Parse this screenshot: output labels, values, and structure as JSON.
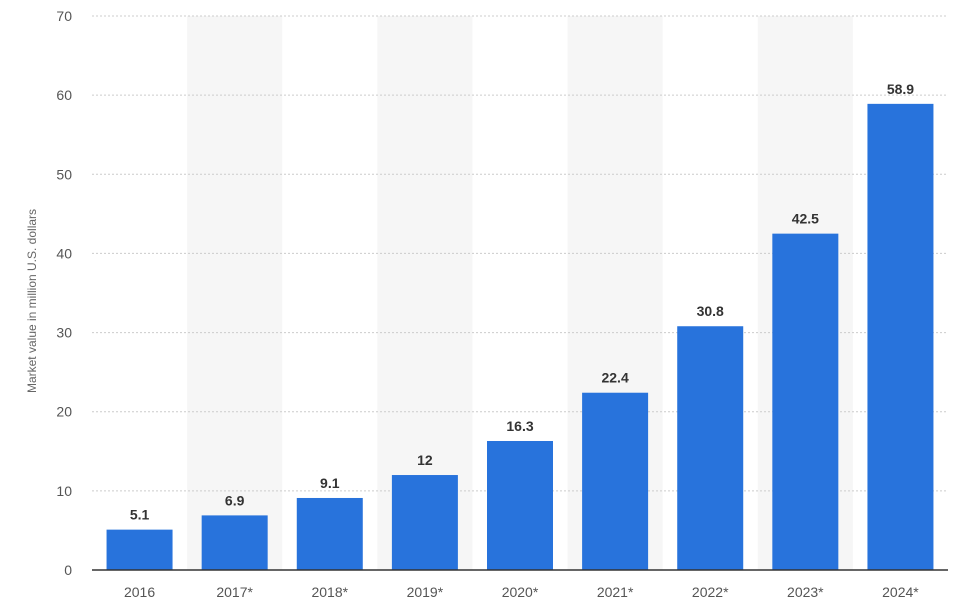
{
  "chart_data": {
    "type": "bar",
    "title": "",
    "xlabel": "",
    "ylabel": "Market value in million U.S. dollars",
    "categories": [
      "2016",
      "2017*",
      "2018*",
      "2019*",
      "2020*",
      "2021*",
      "2022*",
      "2023*",
      "2024*"
    ],
    "values": [
      5.1,
      6.9,
      9.1,
      12,
      16.3,
      22.4,
      30.8,
      42.5,
      58.9
    ],
    "value_labels": [
      "5.1",
      "6.9",
      "9.1",
      "12",
      "16.3",
      "22.4",
      "30.8",
      "42.5",
      "58.9"
    ],
    "ylim": [
      0,
      70
    ],
    "yticks": [
      0,
      10,
      20,
      30,
      40,
      50,
      60,
      70
    ],
    "grid": true,
    "legend": "none",
    "colors": {
      "bar": "#2873dc",
      "band": "#f6f6f6",
      "grid": "#cccccc",
      "axis": "#333333"
    }
  }
}
